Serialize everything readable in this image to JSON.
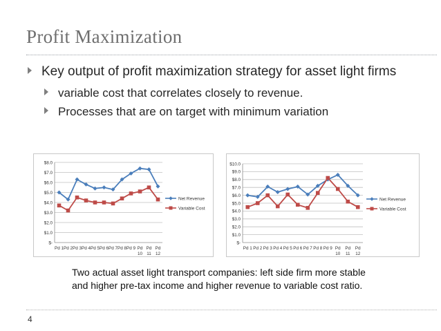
{
  "slide": {
    "title": "Profit Maximization",
    "bullets": [
      "Key output of profit maximization strategy for asset light firms",
      "variable cost that correlates closely to revenue.",
      "Processes that are on target with minimum variation"
    ],
    "caption_line1": "Two actual asset light transport companies: left side firm more stable",
    "caption_line2": "and higher pre-tax income and higher revenue to variable cost ratio.",
    "slide_number": "4",
    "colors": {
      "net_revenue": "#4a7ebb",
      "variable_cost": "#be4b48"
    }
  },
  "chart_data": [
    {
      "type": "line",
      "title": "",
      "xlabel": "",
      "ylabel": "",
      "categories": [
        "Pd 1",
        "Pd 2",
        "Pd 3",
        "Pd 4",
        "Pd 5",
        "Pd 6",
        "Pd 7",
        "Pd 8",
        "Pd 9",
        "Pd 10",
        "Pd 11",
        "Pd 12"
      ],
      "tick_labels_top": [
        "Pd 1",
        "Pd 2",
        "Pd 3",
        "Pd 4",
        "Pd 5",
        "Pd 6",
        "Pd 7",
        "Pd 8",
        "Pd 9",
        "Pd",
        "Pd",
        "Pd"
      ],
      "tick_labels_bottom": [
        "",
        "",
        "",
        "",
        "",
        "",
        "",
        "",
        "",
        "10",
        "11",
        "12"
      ],
      "y_ticks": [
        "$-",
        "$1.0",
        "$2.0",
        "$3.0",
        "$4.0",
        "$5.0",
        "$6.0",
        "$7.0",
        "$8.0"
      ],
      "ylim": [
        0,
        8
      ],
      "grid": true,
      "legend_position": "right",
      "series": [
        {
          "name": "Net Revenue",
          "values": [
            5.0,
            4.3,
            6.3,
            5.8,
            5.4,
            5.5,
            5.3,
            6.3,
            6.9,
            7.4,
            7.3,
            5.6
          ]
        },
        {
          "name": "Variable Cost",
          "values": [
            3.7,
            3.2,
            4.5,
            4.2,
            4.0,
            4.0,
            3.9,
            4.4,
            4.9,
            5.1,
            5.5,
            4.3
          ]
        }
      ]
    },
    {
      "type": "line",
      "title": "",
      "xlabel": "",
      "ylabel": "",
      "categories": [
        "Pd 1",
        "Pd 2",
        "Pd 3",
        "Pd 4",
        "Pd 5",
        "Pd 6",
        "Pd 7",
        "Pd 8",
        "Pd 9",
        "Pd 10",
        "Pd 11",
        "Pd 12"
      ],
      "tick_labels_top": [
        "Pd 1",
        "Pd 2",
        "Pd 3",
        "Pd 4",
        "Pd 5",
        "Pd 6",
        "Pd 7",
        "Pd 8",
        "Pd 9",
        "Pd",
        "Pd",
        "Pd"
      ],
      "tick_labels_bottom": [
        "",
        "",
        "",
        "",
        "",
        "",
        "",
        "",
        "",
        "10",
        "11",
        "12"
      ],
      "y_ticks": [
        "$-",
        "$1.0",
        "$2.0",
        "$3.0",
        "$4.0",
        "$5.0",
        "$6.0",
        "$7.0",
        "$8.0",
        "$9.0",
        "$10.0"
      ],
      "ylim": [
        0,
        10
      ],
      "grid": true,
      "legend_position": "right",
      "series": [
        {
          "name": "Net Revenue",
          "values": [
            6.0,
            5.8,
            7.1,
            6.4,
            6.8,
            7.1,
            6.1,
            7.2,
            8.0,
            8.6,
            7.2,
            6.0
          ]
        },
        {
          "name": "Variable Cost",
          "values": [
            4.5,
            5.0,
            6.0,
            4.6,
            6.1,
            4.8,
            4.4,
            6.3,
            8.2,
            6.8,
            5.2,
            4.5
          ]
        }
      ]
    }
  ]
}
